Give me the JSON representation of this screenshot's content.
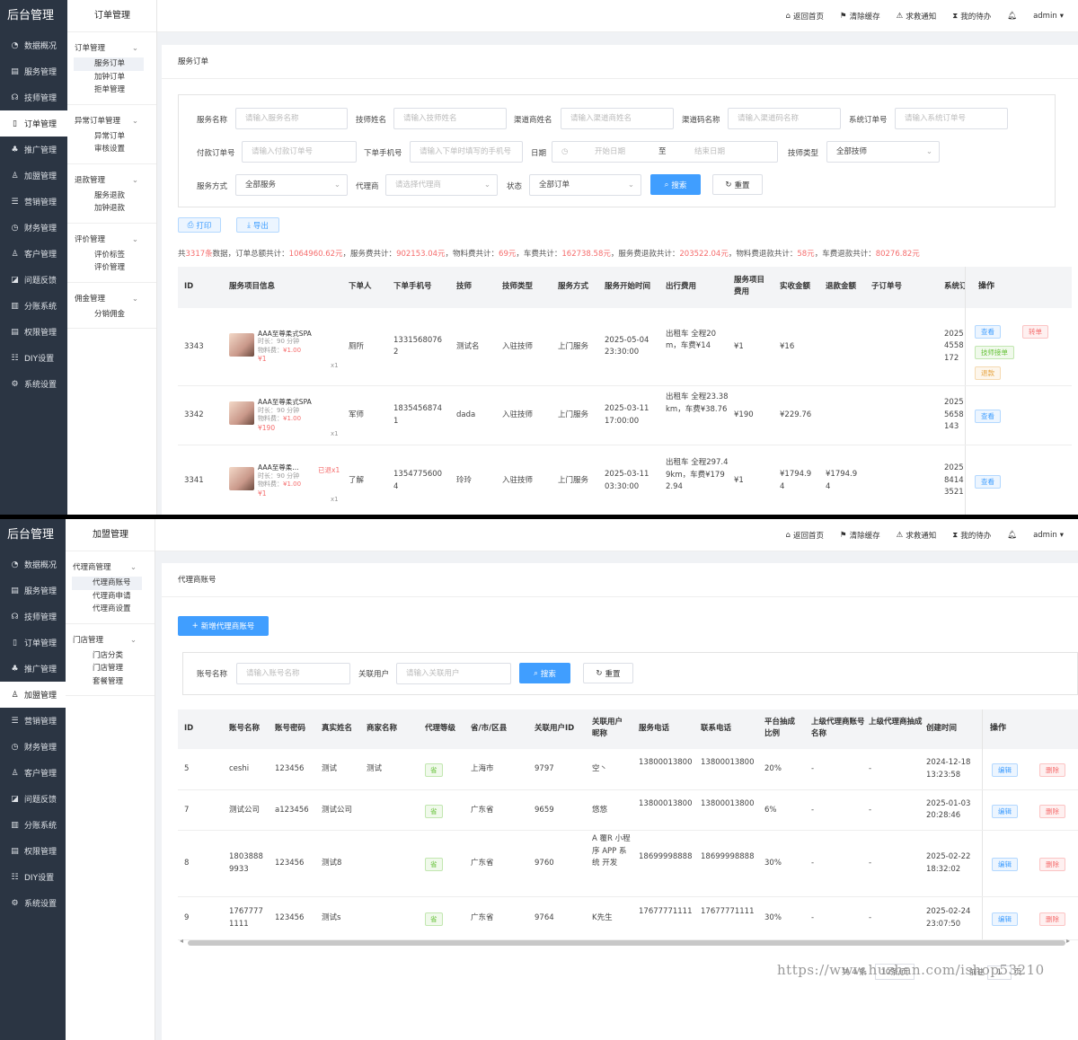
{
  "sidebar": {
    "brand": "后台管理",
    "items": [
      {
        "label": "数据概况",
        "icon": "dashboard-icon",
        "glyph": "◔"
      },
      {
        "label": "服务管理",
        "icon": "service-icon",
        "glyph": "▤"
      },
      {
        "label": "技师管理",
        "icon": "technician-icon",
        "glyph": "☊"
      },
      {
        "label": "订单管理",
        "icon": "order-icon",
        "glyph": "▯"
      },
      {
        "label": "推广管理",
        "icon": "promotion-icon",
        "glyph": "♣"
      },
      {
        "label": "加盟管理",
        "icon": "franchise-icon",
        "glyph": "♙"
      },
      {
        "label": "营销管理",
        "icon": "marketing-icon",
        "glyph": "☰"
      },
      {
        "label": "财务管理",
        "icon": "finance-icon",
        "glyph": "◷"
      },
      {
        "label": "客户管理",
        "icon": "customer-icon",
        "glyph": "♙"
      },
      {
        "label": "问题反馈",
        "icon": "feedback-icon",
        "glyph": "◪"
      },
      {
        "label": "分账系统",
        "icon": "split-icon",
        "glyph": "▥"
      },
      {
        "label": "权限管理",
        "icon": "permission-icon",
        "glyph": "▤"
      },
      {
        "label": "DIY设置",
        "icon": "diy-icon",
        "glyph": "☷"
      },
      {
        "label": "系统设置",
        "icon": "settings-icon",
        "glyph": "⚙"
      }
    ]
  },
  "topbar": {
    "home": "返回首页",
    "clear_cache": "清除缓存",
    "sos": "求救通知",
    "todo": "我的待办",
    "user": "admin"
  },
  "screen1": {
    "subnav_title": "订单管理",
    "groups": [
      {
        "title": "订单管理",
        "items": [
          "服务订单",
          "加钟订单",
          "拒单管理"
        ]
      },
      {
        "title": "异常订单管理",
        "items": [
          "异常订单",
          "审核设置"
        ]
      },
      {
        "title": "退款管理",
        "items": [
          "服务退款",
          "加钟退款"
        ]
      },
      {
        "title": "评价管理",
        "items": [
          "评价标签",
          "评价管理"
        ]
      },
      {
        "title": "佣金管理",
        "items": [
          "分销佣金"
        ]
      }
    ],
    "page_title": "服务订单",
    "filters": {
      "service_name": {
        "label": "服务名称",
        "placeholder": "请输入服务名称"
      },
      "tech_name": {
        "label": "技师姓名",
        "placeholder": "请输入技师姓名"
      },
      "channel_name": {
        "label": "渠道商姓名",
        "placeholder": "请输入渠道商姓名"
      },
      "channel_code": {
        "label": "渠道码名称",
        "placeholder": "请输入渠道码名称"
      },
      "sys_order": {
        "label": "系统订单号",
        "placeholder": "请输入系统订单号"
      },
      "pay_order": {
        "label": "付款订单号",
        "placeholder": "请输入付款订单号"
      },
      "phone": {
        "label": "下单手机号",
        "placeholder": "请输入下单时填写的手机号"
      },
      "date": {
        "label": "日期",
        "start": "开始日期",
        "sep": "至",
        "end": "结束日期"
      },
      "tech_type": {
        "label": "技师类型",
        "value": "全部技师"
      },
      "service_mode": {
        "label": "服务方式",
        "value": "全部服务"
      },
      "agent": {
        "label": "代理商",
        "placeholder": "请选择代理商"
      },
      "status": {
        "label": "状态",
        "value": "全部订单"
      },
      "search": "搜索",
      "reset": "重置"
    },
    "print": "打印",
    "export": "导出",
    "stats": [
      {
        "t": "共"
      },
      {
        "t": "3317条",
        "r": true
      },
      {
        "t": "数据，订单总额共计："
      },
      {
        "t": "1064960.62元",
        "r": true
      },
      {
        "t": "，服务费共计："
      },
      {
        "t": "902153.04元",
        "r": true
      },
      {
        "t": "，物料费共计："
      },
      {
        "t": "69元",
        "r": true
      },
      {
        "t": "，车费共计："
      },
      {
        "t": "162738.58元",
        "r": true
      },
      {
        "t": "，服务费退款共计："
      },
      {
        "t": "203522.04元",
        "r": true
      },
      {
        "t": "，物料费退款共计："
      },
      {
        "t": "58元",
        "r": true
      },
      {
        "t": "，车费退款共计："
      },
      {
        "t": "80276.82元",
        "r": true
      }
    ],
    "columns": [
      "ID",
      "服务项目信息",
      "下单人",
      "下单手机号",
      "技师",
      "技师类型",
      "服务方式",
      "服务开始时间",
      "出行费用",
      "服务项目费用",
      "实收金额",
      "退款金额",
      "子订单号",
      "系统订单号",
      "操作"
    ],
    "rows": [
      {
        "id": "3343",
        "name": "AAA至尊柔式SPA",
        "duration": "时长：90 分钟",
        "material": "物料费：",
        "material_val": "¥1.00",
        "price": "¥1",
        "qty": "x1",
        "flag": "",
        "user": "厕所",
        "phone": "13315680762",
        "tech": "测试名",
        "tech_type": "入驻技师",
        "mode": "上门服务",
        "start": "2025-05-04 23:30:00",
        "travel": "出租车 全程20m，车费¥14",
        "item_fee": "¥1",
        "paid": "¥16",
        "refund": "",
        "sub": "",
        "sys": "2025 4558 172",
        "ops": [
          {
            "l": "查看",
            "c": "blue"
          },
          {
            "l": "转单",
            "c": "red"
          },
          {
            "l": "技师接单",
            "c": "green"
          },
          {
            "l": "退款",
            "c": "orange"
          }
        ]
      },
      {
        "id": "3342",
        "name": "AAA至尊柔式SPA",
        "duration": "时长：90 分钟",
        "material": "物料费：",
        "material_val": "¥1.00",
        "price": "¥190",
        "qty": "x1",
        "flag": "",
        "user": "军师",
        "phone": "18354568741",
        "tech": "dada",
        "tech_type": "入驻技师",
        "mode": "上门服务",
        "start": "2025-03-11 17:00:00",
        "travel": "出租车 全程23.38km，车费¥38.76",
        "item_fee": "¥190",
        "paid": "¥229.76",
        "refund": "",
        "sub": "",
        "sys": "2025 5658 143",
        "ops": [
          {
            "l": "查看",
            "c": "blue"
          }
        ]
      },
      {
        "id": "3341",
        "name": "AAA至尊柔...",
        "duration": "时长：90 分钟",
        "material": "物料费：",
        "material_val": "¥1.00",
        "price": "¥1",
        "qty": "x1",
        "flag": "已退x1",
        "user": "了解",
        "phone": "13547756004",
        "tech": "玲玲",
        "tech_type": "入驻技师",
        "mode": "上门服务",
        "start": "2025-03-11 03:30:00",
        "travel": "出租车 全程297.49km，车费¥1792.94",
        "item_fee": "¥1",
        "paid": "¥1794.94",
        "refund": "¥1794.94",
        "sub": "",
        "sys": "2025 8414 3521",
        "ops": [
          {
            "l": "查看",
            "c": "blue"
          }
        ]
      }
    ]
  },
  "screen2": {
    "subnav_title": "加盟管理",
    "groups": [
      {
        "title": "代理商管理",
        "items": [
          "代理商账号",
          "代理商申请",
          "代理商设置"
        ]
      },
      {
        "title": "门店管理",
        "items": [
          "门店分类",
          "门店管理",
          "套餐管理"
        ]
      }
    ],
    "page_title": "代理商账号",
    "add_button": "新增代理商账号",
    "filters": {
      "account": {
        "label": "账号名称",
        "placeholder": "请输入账号名称"
      },
      "linked": {
        "label": "关联用户",
        "placeholder": "请输入关联用户"
      },
      "search": "搜索",
      "reset": "重置"
    },
    "columns": [
      "ID",
      "账号名称",
      "账号密码",
      "真实姓名",
      "商家名称",
      "代理等级",
      "省/市/区县",
      "关联用户ID",
      "关联用户昵称",
      "服务电话",
      "联系电话",
      "平台抽成比例",
      "上级代理商账号名称",
      "上级代理商抽成",
      "创建时间",
      "操作"
    ],
    "rows": [
      {
        "id": "5",
        "account": "ceshi",
        "password": "123456",
        "real": "测试",
        "shop": "测试",
        "level": "省",
        "region": "上海市",
        "uid": "9797",
        "nick": "空丶",
        "svc": "13800013800",
        "contact": "13800013800",
        "rate": "20%",
        "parent": "-",
        "parent_rate": "-",
        "created": "2024-12-18 13:23:58"
      },
      {
        "id": "7",
        "account": "测试公司",
        "password": "a123456",
        "real": "测试公司",
        "shop": "",
        "level": "省",
        "region": "广东省",
        "uid": "9659",
        "nick": "悠悠",
        "svc": "13800013800",
        "contact": "13800013800",
        "rate": "6%",
        "parent": "-",
        "parent_rate": "-",
        "created": "2025-01-03 20:28:46"
      },
      {
        "id": "8",
        "account": "18038889933",
        "password": "123456",
        "real": "测试8",
        "shop": "",
        "level": "省",
        "region": "广东省",
        "uid": "9760",
        "nick": "A 覆R 小程序 APP 系统 开发",
        "svc": "18699998888",
        "contact": "18699998888",
        "rate": "30%",
        "parent": "-",
        "parent_rate": "-",
        "created": "2025-02-22 18:32:02"
      },
      {
        "id": "9",
        "account": "17677771111",
        "password": "123456",
        "real": "测试s",
        "shop": "",
        "level": "省",
        "region": "广东省",
        "uid": "9764",
        "nick": "K先生",
        "svc": "17677771111",
        "contact": "17677771111",
        "rate": "30%",
        "parent": "-",
        "parent_rate": "-",
        "created": "2025-02-24 23:07:50"
      }
    ],
    "ops": {
      "edit": "编辑",
      "del": "删除"
    },
    "pagination": {
      "total": "共 4 条",
      "size": "10条/页",
      "goto": "前往",
      "page": "1",
      "unit": "页"
    },
    "watermark": "https://www.huzhan.com/ishop53210"
  }
}
